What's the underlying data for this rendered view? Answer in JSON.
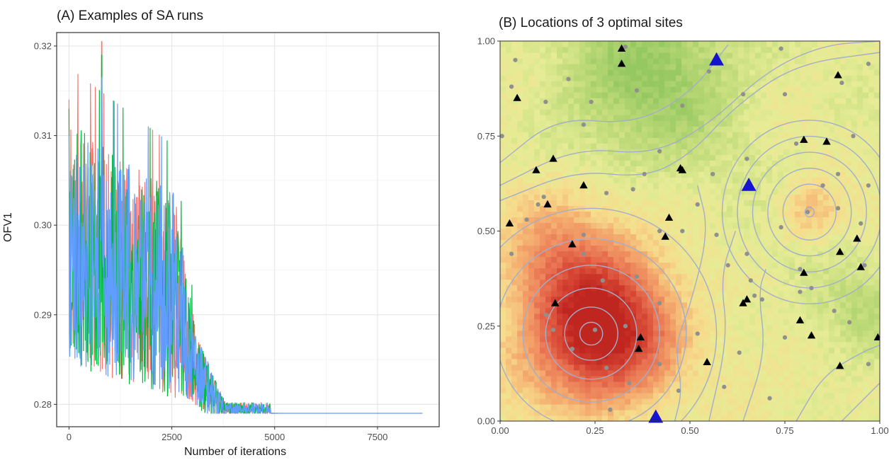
{
  "chart_data": [
    {
      "type": "line",
      "title": "(A) Examples of SA runs",
      "xlabel": "Number of iterations",
      "ylabel": "OFV1",
      "xlim": [
        -300,
        9000
      ],
      "ylim": [
        0.2775,
        0.3215
      ],
      "x_ticks": [
        0,
        2500,
        5000,
        7500
      ],
      "x_tick_labels": [
        "0",
        "2500",
        "5000",
        "7500"
      ],
      "y_ticks": [
        0.28,
        0.29,
        0.3,
        0.31,
        0.32
      ],
      "y_tick_labels": [
        "0.28",
        "0.29",
        "0.30",
        "0.31",
        "0.32"
      ],
      "grid": true,
      "legend": "none",
      "series": [
        {
          "color": "#f8766d",
          "iterations": 5100,
          "start": 0.314,
          "peak": 0.3205,
          "final": 0.279
        },
        {
          "color": "#00ba38",
          "iterations": 5000,
          "start": 0.313,
          "peak": 0.319,
          "final": 0.279
        },
        {
          "color": "#619cff",
          "iterations": 8600,
          "start": 0.31,
          "peak": 0.3165,
          "final": 0.279
        }
      ]
    },
    {
      "type": "scatter",
      "title": "(B) Locations of 3 optimal sites",
      "xlim": [
        0,
        1
      ],
      "ylim": [
        0,
        1
      ],
      "x_ticks": [
        0,
        0.25,
        0.5,
        0.75,
        1.0
      ],
      "x_tick_labels": [
        "0.00",
        "0.25",
        "0.50",
        "0.75",
        "1.00"
      ],
      "y_ticks": [
        0,
        0.25,
        0.5,
        0.75,
        1.0
      ],
      "y_tick_labels": [
        "0.00",
        "0.25",
        "0.50",
        "0.75",
        "1.00"
      ],
      "background": "heatmap",
      "heat_centers": [
        {
          "x": 0.27,
          "y": 0.23
        },
        {
          "x": 0.82,
          "y": 0.55
        }
      ],
      "heat_colors": {
        "high": "#d7301f",
        "mid": "#f4a582",
        "low": "#ecec9a",
        "green": "#9ccb6b"
      },
      "contour_color": "#a3aec8",
      "optimal_sites": [
        {
          "x": 0.57,
          "y": 0.95
        },
        {
          "x": 0.655,
          "y": 0.62
        },
        {
          "x": 0.41,
          "y": 0.01
        }
      ],
      "optimal_color": "#1515d0",
      "candidate_sites": [
        {
          "x": 0.32,
          "y": 0.98
        },
        {
          "x": 0.32,
          "y": 0.94
        },
        {
          "x": 0.89,
          "y": 0.91
        },
        {
          "x": 0.045,
          "y": 0.85
        },
        {
          "x": 0.8,
          "y": 0.74
        },
        {
          "x": 0.86,
          "y": 0.735
        },
        {
          "x": 0.14,
          "y": 0.69
        },
        {
          "x": 0.475,
          "y": 0.665
        },
        {
          "x": 0.48,
          "y": 0.66
        },
        {
          "x": 0.095,
          "y": 0.66
        },
        {
          "x": 0.22,
          "y": 0.62
        },
        {
          "x": 0.125,
          "y": 0.57
        },
        {
          "x": 0.445,
          "y": 0.535
        },
        {
          "x": 0.025,
          "y": 0.52
        },
        {
          "x": 0.94,
          "y": 0.48
        },
        {
          "x": 0.435,
          "y": 0.485
        },
        {
          "x": 0.19,
          "y": 0.465
        },
        {
          "x": 0.895,
          "y": 0.445
        },
        {
          "x": 0.95,
          "y": 0.405
        },
        {
          "x": 0.8,
          "y": 0.39
        },
        {
          "x": 0.65,
          "y": 0.32
        },
        {
          "x": 0.64,
          "y": 0.31
        },
        {
          "x": 0.145,
          "y": 0.31
        },
        {
          "x": 0.79,
          "y": 0.265
        },
        {
          "x": 0.37,
          "y": 0.22
        },
        {
          "x": 0.82,
          "y": 0.225
        },
        {
          "x": 0.995,
          "y": 0.22
        },
        {
          "x": 0.365,
          "y": 0.19
        },
        {
          "x": 0.545,
          "y": 0.155
        },
        {
          "x": 0.895,
          "y": 0.145
        }
      ],
      "other_points": [
        {
          "x": 0.04,
          "y": 0.95
        },
        {
          "x": 0.33,
          "y": 0.985
        },
        {
          "x": 0.55,
          "y": 0.92
        },
        {
          "x": 0.74,
          "y": 0.98
        },
        {
          "x": 0.97,
          "y": 0.94
        },
        {
          "x": 0.03,
          "y": 0.88
        },
        {
          "x": 0.18,
          "y": 0.9
        },
        {
          "x": 0.36,
          "y": 0.87
        },
        {
          "x": 0.48,
          "y": 0.83
        },
        {
          "x": 0.64,
          "y": 0.86
        },
        {
          "x": 0.75,
          "y": 0.86
        },
        {
          "x": 0.12,
          "y": 0.84
        },
        {
          "x": 0.24,
          "y": 0.84
        },
        {
          "x": 0.9,
          "y": 0.89
        },
        {
          "x": 0.22,
          "y": 0.78
        },
        {
          "x": 0.005,
          "y": 0.75
        },
        {
          "x": 0.42,
          "y": 0.71
        },
        {
          "x": 0.65,
          "y": 0.69
        },
        {
          "x": 0.78,
          "y": 0.73
        },
        {
          "x": 0.93,
          "y": 0.75
        },
        {
          "x": 0.38,
          "y": 0.65
        },
        {
          "x": 0.56,
          "y": 0.65
        },
        {
          "x": 0.85,
          "y": 0.62
        },
        {
          "x": 0.97,
          "y": 0.62
        },
        {
          "x": 0.89,
          "y": 0.65
        },
        {
          "x": 0.115,
          "y": 0.59
        },
        {
          "x": 0.28,
          "y": 0.6
        },
        {
          "x": 0.35,
          "y": 0.61
        },
        {
          "x": 0.52,
          "y": 0.57
        },
        {
          "x": 0.1,
          "y": 0.57
        },
        {
          "x": 0.89,
          "y": 0.56
        },
        {
          "x": 0.07,
          "y": 0.53
        },
        {
          "x": 0.48,
          "y": 0.5
        },
        {
          "x": 0.74,
          "y": 0.51
        },
        {
          "x": 0.95,
          "y": 0.52
        },
        {
          "x": 0.22,
          "y": 0.49
        },
        {
          "x": 0.42,
          "y": 0.5
        },
        {
          "x": 0.57,
          "y": 0.49
        },
        {
          "x": 0.65,
          "y": 0.44
        },
        {
          "x": 0.22,
          "y": 0.44
        },
        {
          "x": 0.03,
          "y": 0.44
        },
        {
          "x": 0.6,
          "y": 0.41
        },
        {
          "x": 0.79,
          "y": 0.4
        },
        {
          "x": 0.96,
          "y": 0.41
        },
        {
          "x": 0.27,
          "y": 0.37
        },
        {
          "x": 0.36,
          "y": 0.38
        },
        {
          "x": 0.66,
          "y": 0.37
        },
        {
          "x": 0.82,
          "y": 0.35
        },
        {
          "x": 0.79,
          "y": 0.34
        },
        {
          "x": 0.67,
          "y": 0.33
        },
        {
          "x": 0.69,
          "y": 0.32
        },
        {
          "x": 0.42,
          "y": 0.31
        },
        {
          "x": 0.12,
          "y": 0.28
        },
        {
          "x": 0.88,
          "y": 0.29
        },
        {
          "x": 0.25,
          "y": 0.24
        },
        {
          "x": 0.14,
          "y": 0.24
        },
        {
          "x": 0.92,
          "y": 0.26
        },
        {
          "x": 0.33,
          "y": 0.25
        },
        {
          "x": 0.52,
          "y": 0.23
        },
        {
          "x": 0.75,
          "y": 0.22
        },
        {
          "x": 0.63,
          "y": 0.18
        },
        {
          "x": 0.19,
          "y": 0.19
        },
        {
          "x": 0.42,
          "y": 0.15
        },
        {
          "x": 0.97,
          "y": 0.15
        },
        {
          "x": 0.34,
          "y": 0.1
        },
        {
          "x": 0.59,
          "y": 0.09
        },
        {
          "x": 0.71,
          "y": 0.06
        },
        {
          "x": 0.47,
          "y": 0.08
        },
        {
          "x": 0.28,
          "y": 0.14
        },
        {
          "x": 0.29,
          "y": 0.03
        },
        {
          "x": 0.81,
          "y": 0.55
        },
        {
          "x": 0.25,
          "y": 0.24
        }
      ]
    }
  ]
}
